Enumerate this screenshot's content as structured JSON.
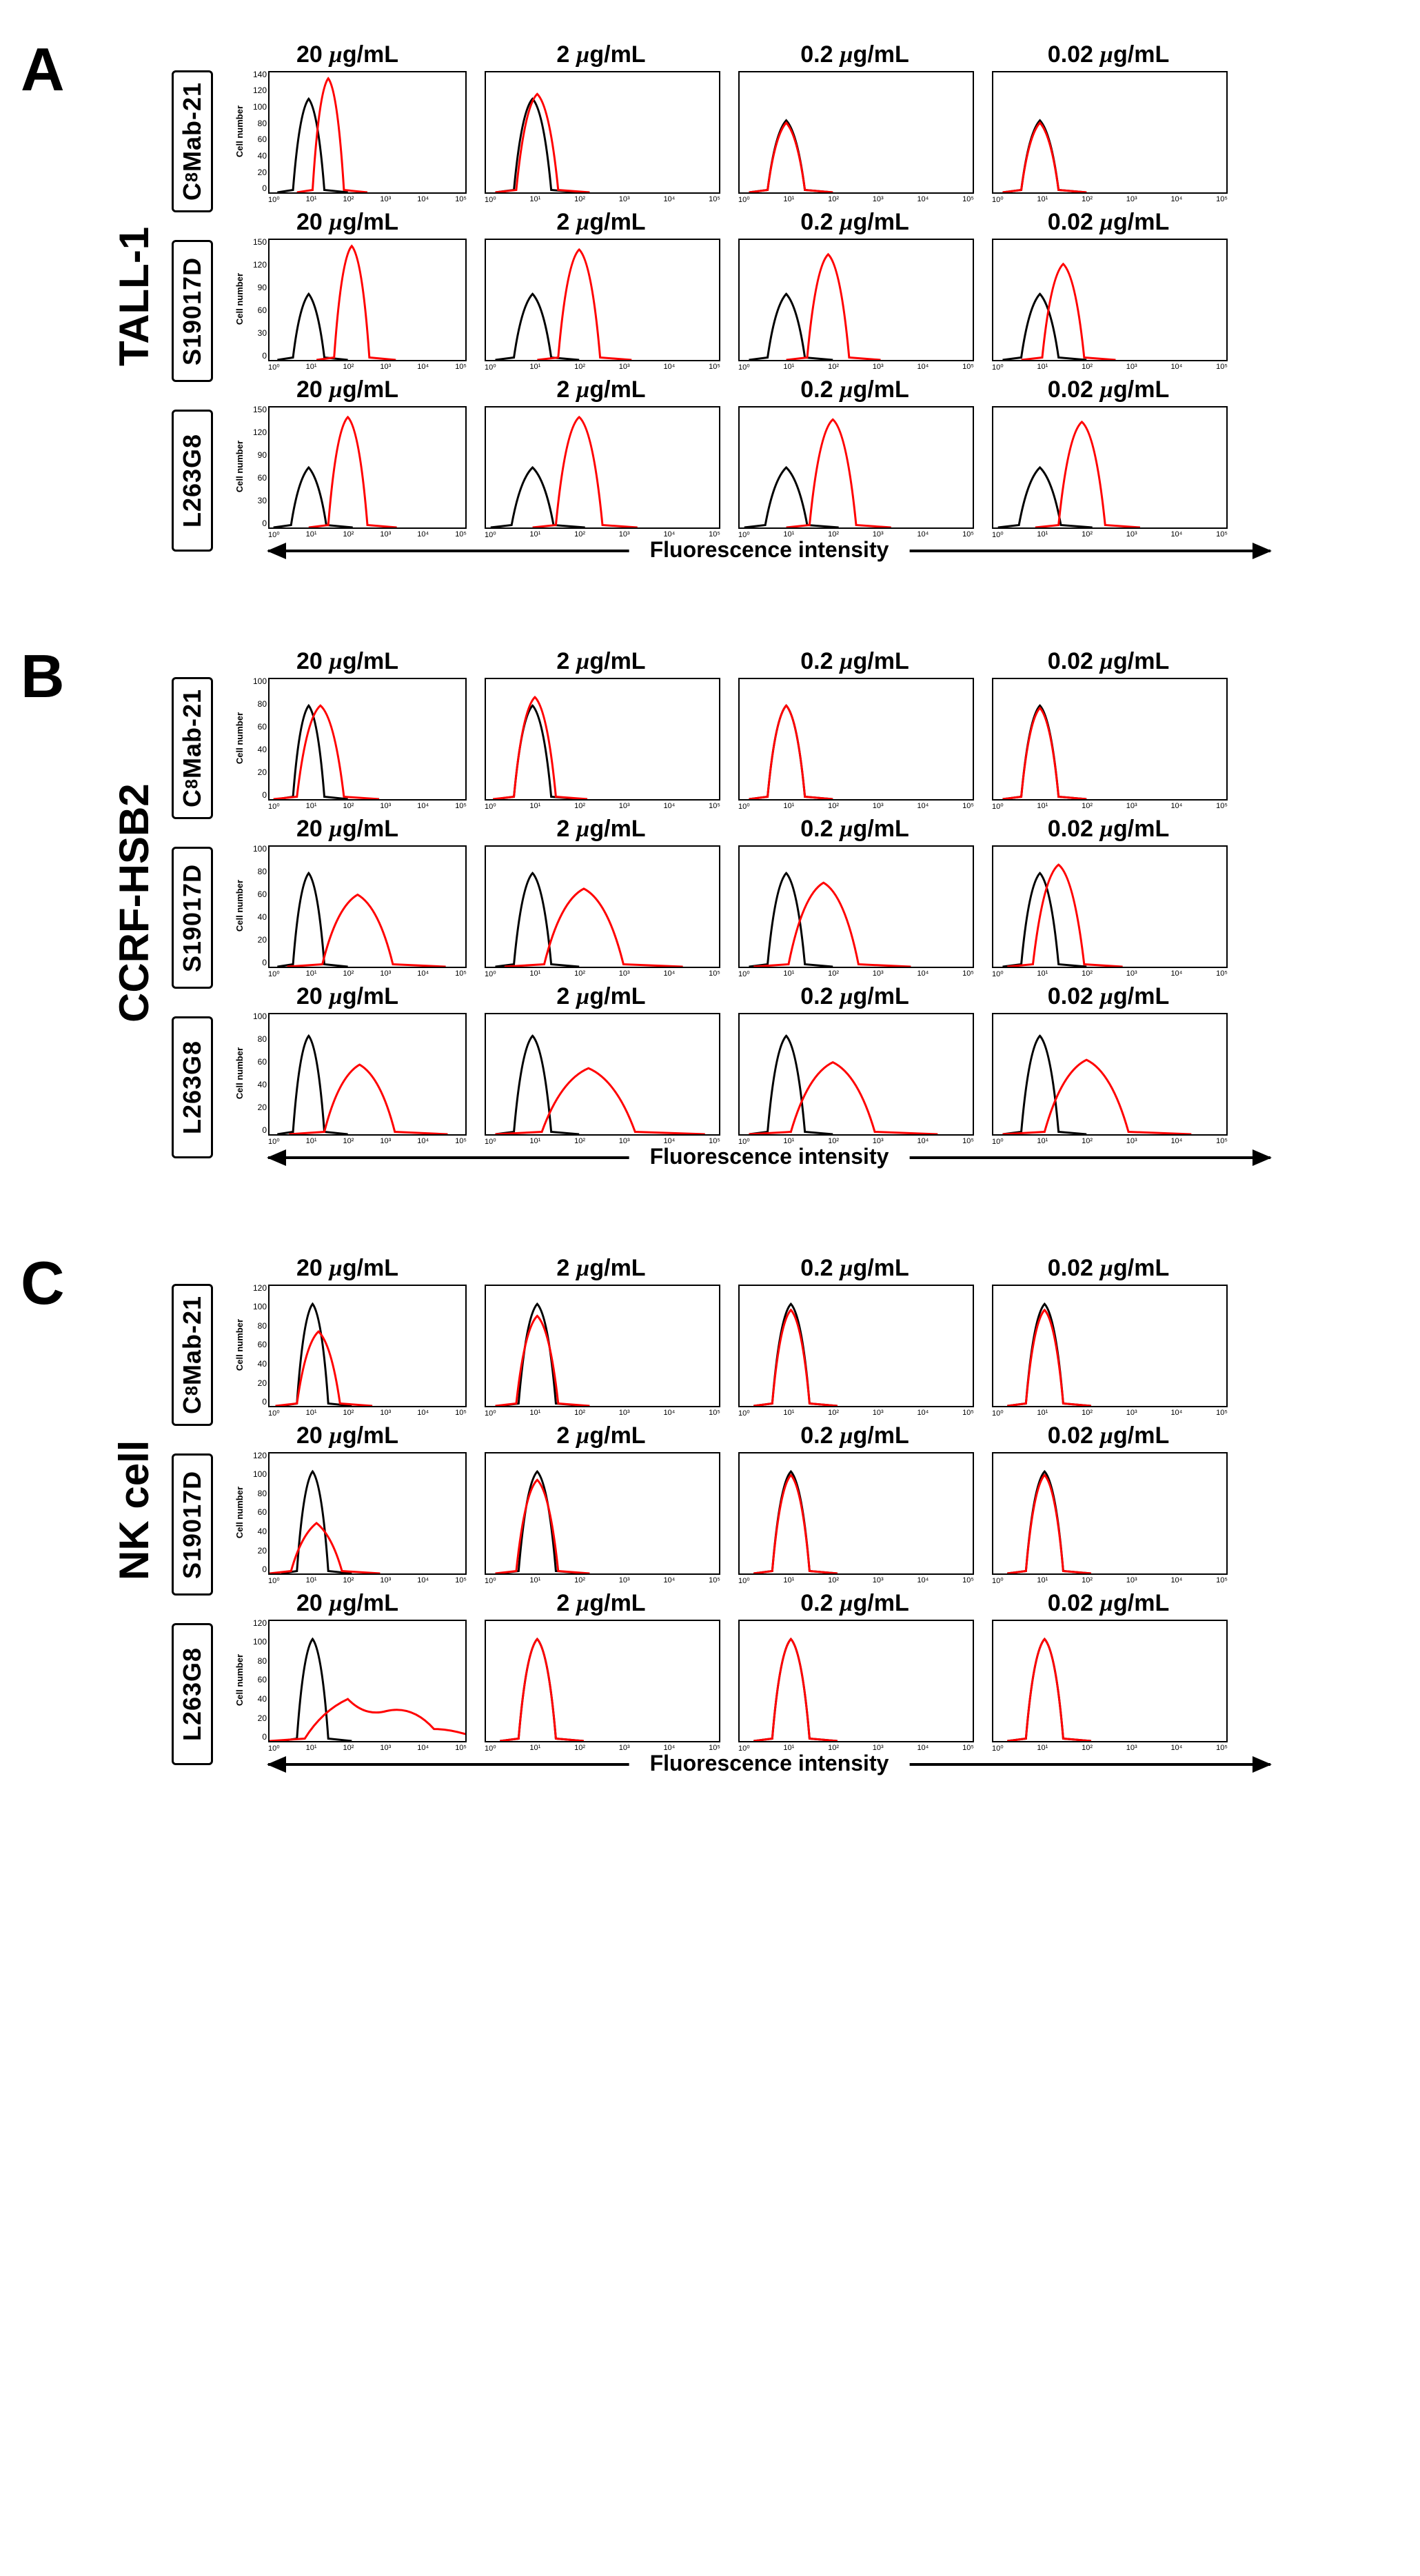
{
  "axis_caption": "Fluorescence intensity",
  "y_axis_label": "Cell number",
  "x_tick_labels": [
    "10⁰",
    "10¹",
    "10²",
    "10³",
    "10⁴",
    "10⁵"
  ],
  "concentrations": [
    "20 µg/mL",
    "2 µg/mL",
    "0.2 µg/mL",
    "0.02 µg/mL"
  ],
  "colors": {
    "control": "#000000",
    "sample": "#ff0000",
    "background": "#ffffff",
    "border": "#000000"
  },
  "stroke_width": 3,
  "panels": [
    {
      "letter": "A",
      "cell_line": "TALL-1",
      "rows": [
        {
          "antibody": "C₈Mab-21",
          "ymax": 140,
          "ytick_step": 20,
          "plots": [
            {
              "ctrl_peak_x": 0.2,
              "ctrl_peak_h": 0.78,
              "samp_peak_x": 0.3,
              "samp_peak_h": 0.95,
              "ctrl_w": 0.08,
              "samp_w": 0.08
            },
            {
              "ctrl_peak_x": 0.2,
              "ctrl_peak_h": 0.78,
              "samp_peak_x": 0.22,
              "samp_peak_h": 0.82,
              "ctrl_w": 0.08,
              "samp_w": 0.09
            },
            {
              "ctrl_peak_x": 0.2,
              "ctrl_peak_h": 0.6,
              "samp_peak_x": 0.2,
              "samp_peak_h": 0.58,
              "ctrl_w": 0.08,
              "samp_w": 0.08
            },
            {
              "ctrl_peak_x": 0.2,
              "ctrl_peak_h": 0.6,
              "samp_peak_x": 0.2,
              "samp_peak_h": 0.58,
              "ctrl_w": 0.08,
              "samp_w": 0.08
            }
          ]
        },
        {
          "antibody": "S19017D",
          "ymax": 150,
          "ytick_step": 30,
          "plots": [
            {
              "ctrl_peak_x": 0.2,
              "ctrl_peak_h": 0.55,
              "samp_peak_x": 0.42,
              "samp_peak_h": 0.95,
              "ctrl_w": 0.08,
              "samp_w": 0.09
            },
            {
              "ctrl_peak_x": 0.2,
              "ctrl_peak_h": 0.55,
              "samp_peak_x": 0.4,
              "samp_peak_h": 0.92,
              "ctrl_w": 0.08,
              "samp_w": 0.09
            },
            {
              "ctrl_peak_x": 0.2,
              "ctrl_peak_h": 0.55,
              "samp_peak_x": 0.38,
              "samp_peak_h": 0.88,
              "ctrl_w": 0.08,
              "samp_w": 0.09
            },
            {
              "ctrl_peak_x": 0.2,
              "ctrl_peak_h": 0.55,
              "samp_peak_x": 0.3,
              "samp_peak_h": 0.8,
              "ctrl_w": 0.08,
              "samp_w": 0.09
            }
          ]
        },
        {
          "antibody": "L263G8",
          "ymax": 150,
          "ytick_step": 30,
          "plots": [
            {
              "ctrl_peak_x": 0.2,
              "ctrl_peak_h": 0.5,
              "samp_peak_x": 0.4,
              "samp_peak_h": 0.92,
              "ctrl_w": 0.09,
              "samp_w": 0.1
            },
            {
              "ctrl_peak_x": 0.2,
              "ctrl_peak_h": 0.5,
              "samp_peak_x": 0.4,
              "samp_peak_h": 0.92,
              "ctrl_w": 0.09,
              "samp_w": 0.1
            },
            {
              "ctrl_peak_x": 0.2,
              "ctrl_peak_h": 0.5,
              "samp_peak_x": 0.4,
              "samp_peak_h": 0.9,
              "ctrl_w": 0.09,
              "samp_w": 0.1
            },
            {
              "ctrl_peak_x": 0.2,
              "ctrl_peak_h": 0.5,
              "samp_peak_x": 0.38,
              "samp_peak_h": 0.88,
              "ctrl_w": 0.09,
              "samp_w": 0.1
            }
          ]
        }
      ]
    },
    {
      "letter": "B",
      "cell_line": "CCRF-HSB2",
      "rows": [
        {
          "antibody": "C₈Mab-21",
          "ymax": 100,
          "ytick_step": 20,
          "plots": [
            {
              "ctrl_peak_x": 0.2,
              "ctrl_peak_h": 0.78,
              "samp_peak_x": 0.26,
              "samp_peak_h": 0.78,
              "ctrl_w": 0.08,
              "samp_w": 0.12
            },
            {
              "ctrl_peak_x": 0.2,
              "ctrl_peak_h": 0.78,
              "samp_peak_x": 0.21,
              "samp_peak_h": 0.85,
              "ctrl_w": 0.08,
              "samp_w": 0.09
            },
            {
              "ctrl_peak_x": 0.2,
              "ctrl_peak_h": 0.78,
              "samp_peak_x": 0.2,
              "samp_peak_h": 0.78,
              "ctrl_w": 0.08,
              "samp_w": 0.08
            },
            {
              "ctrl_peak_x": 0.2,
              "ctrl_peak_h": 0.78,
              "samp_peak_x": 0.2,
              "samp_peak_h": 0.76,
              "ctrl_w": 0.08,
              "samp_w": 0.08
            }
          ]
        },
        {
          "antibody": "S19017D",
          "ymax": 100,
          "ytick_step": 20,
          "plots": [
            {
              "ctrl_peak_x": 0.2,
              "ctrl_peak_h": 0.78,
              "samp_peak_x": 0.45,
              "samp_peak_h": 0.6,
              "ctrl_w": 0.08,
              "samp_w": 0.18
            },
            {
              "ctrl_peak_x": 0.2,
              "ctrl_peak_h": 0.78,
              "samp_peak_x": 0.42,
              "samp_peak_h": 0.65,
              "ctrl_w": 0.08,
              "samp_w": 0.17
            },
            {
              "ctrl_peak_x": 0.2,
              "ctrl_peak_h": 0.78,
              "samp_peak_x": 0.36,
              "samp_peak_h": 0.7,
              "ctrl_w": 0.08,
              "samp_w": 0.15
            },
            {
              "ctrl_peak_x": 0.2,
              "ctrl_peak_h": 0.78,
              "samp_peak_x": 0.28,
              "samp_peak_h": 0.85,
              "ctrl_w": 0.08,
              "samp_w": 0.11
            }
          ]
        },
        {
          "antibody": "L263G8",
          "ymax": 100,
          "ytick_step": 20,
          "plots": [
            {
              "ctrl_peak_x": 0.2,
              "ctrl_peak_h": 0.82,
              "samp_peak_x": 0.46,
              "samp_peak_h": 0.58,
              "ctrl_w": 0.08,
              "samp_w": 0.18
            },
            {
              "ctrl_peak_x": 0.2,
              "ctrl_peak_h": 0.82,
              "samp_peak_x": 0.44,
              "samp_peak_h": 0.55,
              "ctrl_w": 0.08,
              "samp_w": 0.2
            },
            {
              "ctrl_peak_x": 0.2,
              "ctrl_peak_h": 0.82,
              "samp_peak_x": 0.4,
              "samp_peak_h": 0.6,
              "ctrl_w": 0.08,
              "samp_w": 0.18
            },
            {
              "ctrl_peak_x": 0.2,
              "ctrl_peak_h": 0.82,
              "samp_peak_x": 0.4,
              "samp_peak_h": 0.62,
              "ctrl_w": 0.08,
              "samp_w": 0.18
            }
          ]
        }
      ]
    },
    {
      "letter": "C",
      "cell_line": "NK cell",
      "rows": [
        {
          "antibody": "C₈Mab-21",
          "ymax": 120,
          "ytick_step": 20,
          "plots": [
            {
              "ctrl_peak_x": 0.22,
              "ctrl_peak_h": 0.85,
              "samp_peak_x": 0.25,
              "samp_peak_h": 0.62,
              "ctrl_w": 0.08,
              "samp_w": 0.11
            },
            {
              "ctrl_peak_x": 0.22,
              "ctrl_peak_h": 0.85,
              "samp_peak_x": 0.22,
              "samp_peak_h": 0.75,
              "ctrl_w": 0.08,
              "samp_w": 0.09
            },
            {
              "ctrl_peak_x": 0.22,
              "ctrl_peak_h": 0.85,
              "samp_peak_x": 0.22,
              "samp_peak_h": 0.8,
              "ctrl_w": 0.08,
              "samp_w": 0.08
            },
            {
              "ctrl_peak_x": 0.22,
              "ctrl_peak_h": 0.85,
              "samp_peak_x": 0.22,
              "samp_peak_h": 0.8,
              "ctrl_w": 0.08,
              "samp_w": 0.08
            }
          ]
        },
        {
          "antibody": "S19017D",
          "ymax": 120,
          "ytick_step": 20,
          "plots": [
            {
              "ctrl_peak_x": 0.22,
              "ctrl_peak_h": 0.85,
              "samp_peak_x": 0.24,
              "samp_peak_h": 0.42,
              "ctrl_w": 0.08,
              "samp_w": 0.13
            },
            {
              "ctrl_peak_x": 0.22,
              "ctrl_peak_h": 0.85,
              "samp_peak_x": 0.22,
              "samp_peak_h": 0.78,
              "ctrl_w": 0.08,
              "samp_w": 0.09
            },
            {
              "ctrl_peak_x": 0.22,
              "ctrl_peak_h": 0.85,
              "samp_peak_x": 0.22,
              "samp_peak_h": 0.82,
              "ctrl_w": 0.08,
              "samp_w": 0.08
            },
            {
              "ctrl_peak_x": 0.22,
              "ctrl_peak_h": 0.85,
              "samp_peak_x": 0.22,
              "samp_peak_h": 0.82,
              "ctrl_w": 0.08,
              "samp_w": 0.08
            }
          ]
        },
        {
          "antibody": "L263G8",
          "ymax": 120,
          "ytick_step": 20,
          "plots": [
            {
              "ctrl_peak_x": 0.22,
              "ctrl_peak_h": 0.85,
              "samp_peak_x": 0.4,
              "samp_peak_h": 0.35,
              "ctrl_w": 0.08,
              "samp_w": 0.22,
              "bimodal": true
            },
            {
              "ctrl_peak_x": 0.22,
              "ctrl_peak_h": 0.85,
              "samp_peak_x": 0.22,
              "samp_peak_h": 0.85,
              "ctrl_w": 0.08,
              "samp_w": 0.08
            },
            {
              "ctrl_peak_x": 0.22,
              "ctrl_peak_h": 0.85,
              "samp_peak_x": 0.22,
              "samp_peak_h": 0.85,
              "ctrl_w": 0.08,
              "samp_w": 0.08
            },
            {
              "ctrl_peak_x": 0.22,
              "ctrl_peak_h": 0.85,
              "samp_peak_x": 0.22,
              "samp_peak_h": 0.85,
              "ctrl_w": 0.08,
              "samp_w": 0.08
            }
          ]
        }
      ]
    }
  ]
}
